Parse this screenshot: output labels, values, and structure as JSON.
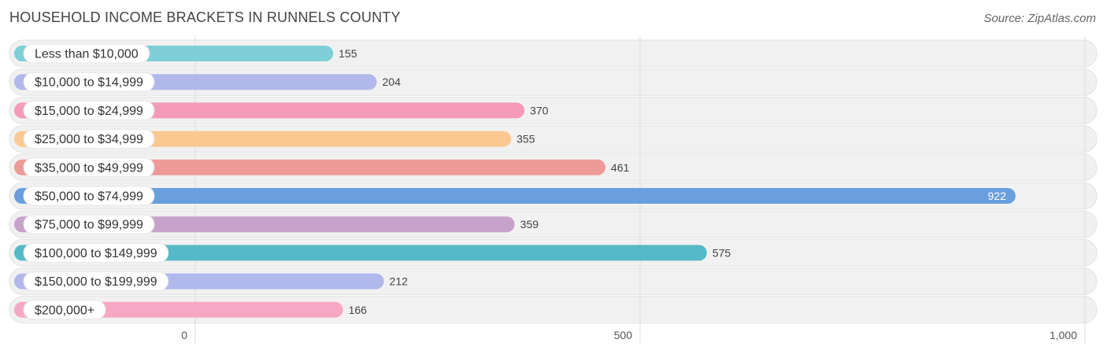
{
  "title": "HOUSEHOLD INCOME BRACKETS IN RUNNELS COUNTY",
  "source": "Source: ZipAtlas.com",
  "chart_data": {
    "type": "bar",
    "orientation": "horizontal",
    "categories": [
      "Less than $10,000",
      "$10,000 to $14,999",
      "$15,000 to $24,999",
      "$25,000 to $34,999",
      "$35,000 to $49,999",
      "$50,000 to $74,999",
      "$75,000 to $99,999",
      "$100,000 to $149,999",
      "$150,000 to $199,999",
      "$200,000+"
    ],
    "values": [
      155,
      204,
      370,
      355,
      461,
      922,
      359,
      575,
      212,
      166
    ],
    "value_labels": [
      "155",
      "204",
      "370",
      "355",
      "461",
      "922",
      "359",
      "575",
      "212",
      "166"
    ],
    "colors": [
      "#7ecfd6",
      "#b0b8ec",
      "#f59ab8",
      "#fac891",
      "#ee9a98",
      "#6a9fde",
      "#c7a3cc",
      "#55b9c8",
      "#b0b8ec",
      "#f6a7c3"
    ],
    "xlim": [
      0,
      1000
    ],
    "xticks": [
      0,
      500,
      1000
    ],
    "xtick_labels": [
      "0",
      "500",
      "1,000"
    ],
    "grid": true
  }
}
